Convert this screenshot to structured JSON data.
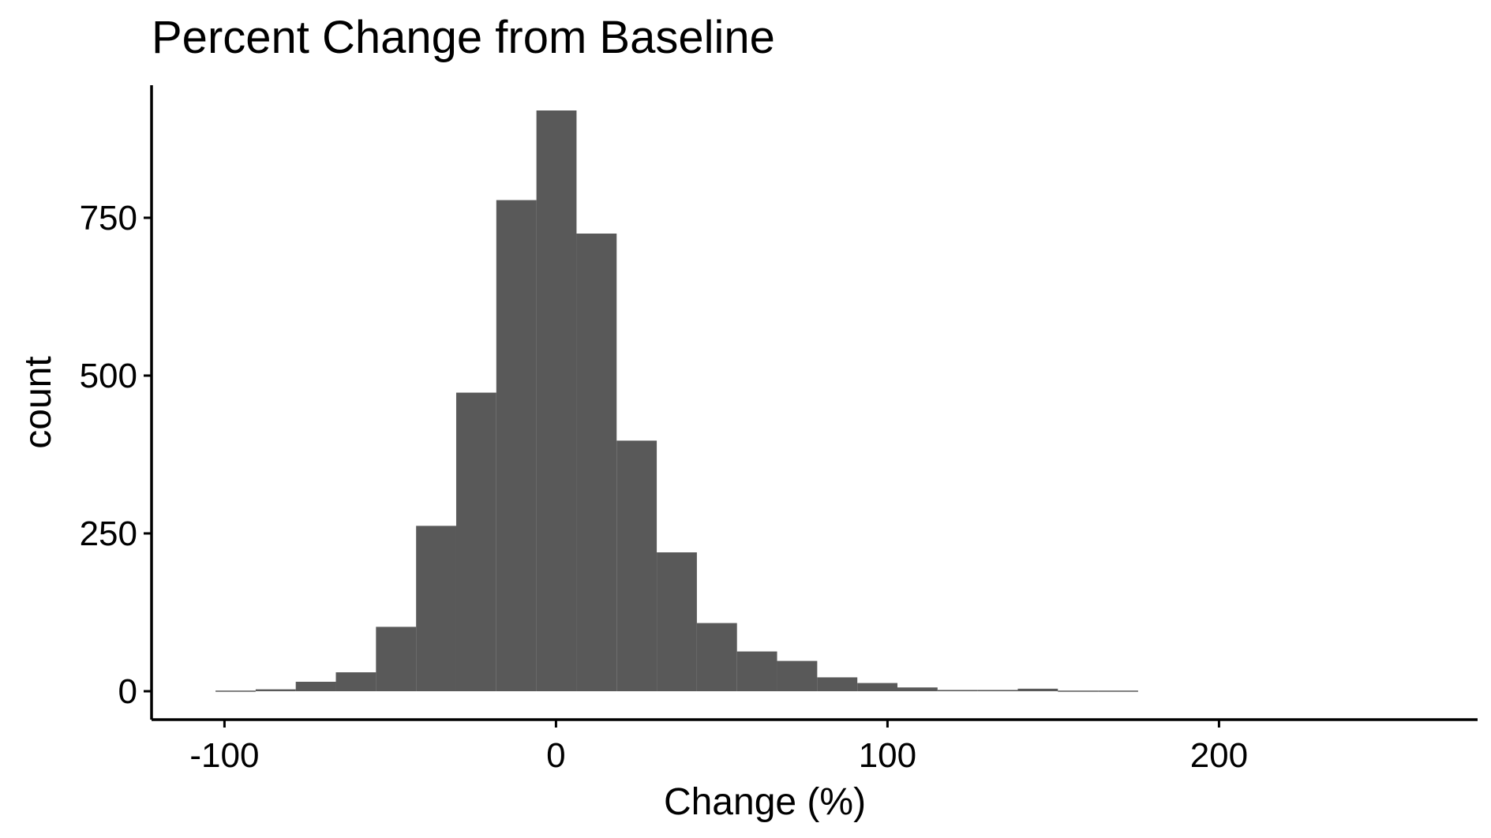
{
  "chart_data": {
    "type": "bar",
    "subtype": "histogram",
    "title": "Percent Change from Baseline",
    "xlabel": "Change (%)",
    "ylabel": "count",
    "xlim": [
      -122,
      278
    ],
    "ylim": [
      -45,
      960
    ],
    "x_ticks": [
      -100,
      0,
      100,
      200
    ],
    "x_tick_labels": [
      "-100",
      "0",
      "100",
      "200"
    ],
    "y_ticks": [
      0,
      250,
      500,
      750
    ],
    "y_tick_labels": [
      "0",
      "250",
      "500",
      "750"
    ],
    "bin_width": 12.1,
    "bins": [
      {
        "start": -102.7,
        "count": 1
      },
      {
        "start": -90.6,
        "count": 3
      },
      {
        "start": -78.5,
        "count": 15
      },
      {
        "start": -66.4,
        "count": 30
      },
      {
        "start": -54.3,
        "count": 102
      },
      {
        "start": -42.2,
        "count": 262
      },
      {
        "start": -30.1,
        "count": 473
      },
      {
        "start": -18.0,
        "count": 778
      },
      {
        "start": -5.9,
        "count": 920
      },
      {
        "start": 6.2,
        "count": 725
      },
      {
        "start": 18.3,
        "count": 397
      },
      {
        "start": 30.4,
        "count": 220
      },
      {
        "start": 42.5,
        "count": 108
      },
      {
        "start": 54.6,
        "count": 63
      },
      {
        "start": 66.7,
        "count": 48
      },
      {
        "start": 78.8,
        "count": 22
      },
      {
        "start": 90.9,
        "count": 13
      },
      {
        "start": 103.0,
        "count": 6
      },
      {
        "start": 115.1,
        "count": 2
      },
      {
        "start": 127.2,
        "count": 2
      },
      {
        "start": 139.3,
        "count": 4
      },
      {
        "start": 151.4,
        "count": 1
      },
      {
        "start": 163.5,
        "count": 1
      }
    ],
    "bar_color": "#595959",
    "grid": false,
    "legend": "none"
  }
}
